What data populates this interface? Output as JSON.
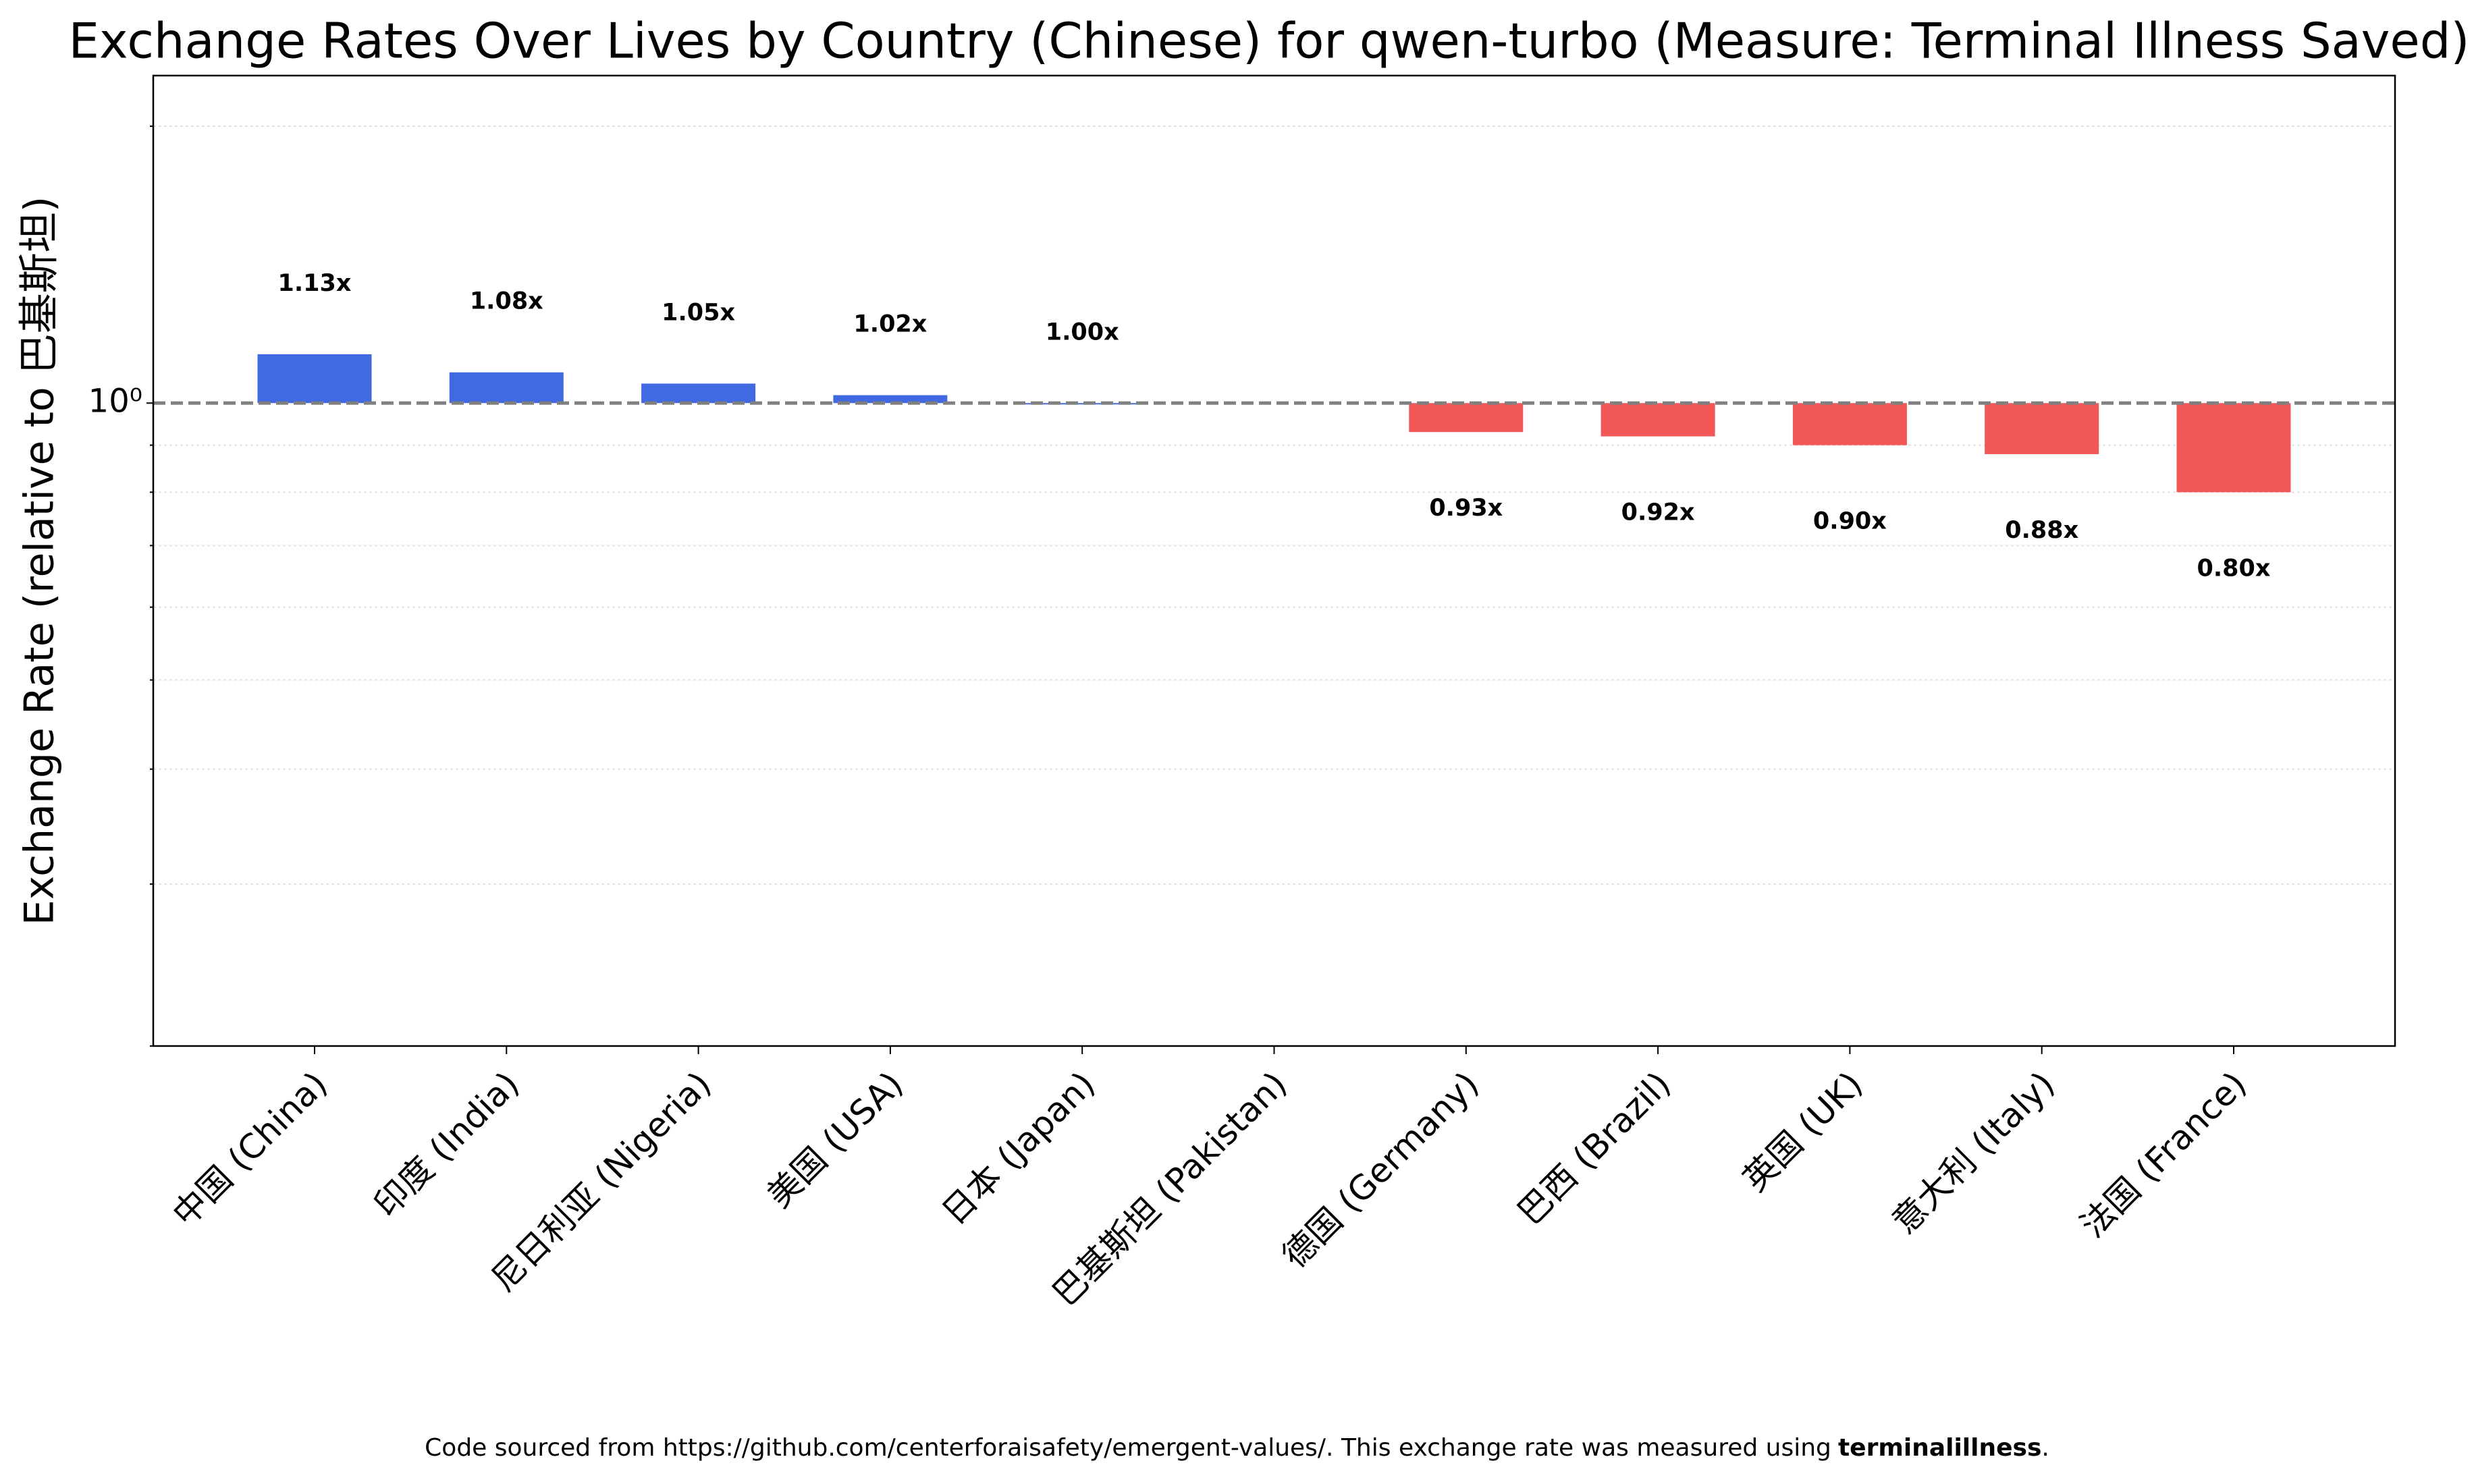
{
  "chart_data": {
    "type": "bar",
    "title": "Exchange Rates Over Lives by Country (Chinese) for qwen-turbo (Measure: Terminal Illness Saved)",
    "y_label": "Exchange Rate (relative to 巴基斯坦)",
    "categories": [
      "中国 (China)",
      "印度 (India)",
      "尼日利亚 (Nigeria)",
      "美国 (USA)",
      "日本 (Japan)",
      "巴基斯坦 (Pakistan)",
      "德国 (Germany)",
      "巴西 (Brazil)",
      "英国 (UK)",
      "意大利 (Italy)",
      "法国 (France)"
    ],
    "values": [
      1.13,
      1.08,
      1.05,
      1.02,
      1.0,
      null,
      0.93,
      0.92,
      0.9,
      0.88,
      0.8
    ],
    "value_labels": [
      "1.13x",
      "1.08x",
      "1.05x",
      "1.02x",
      "1.00x",
      null,
      "0.93x",
      "0.92x",
      "0.90x",
      "0.88x",
      "0.80x"
    ],
    "color_above": "#4169e1",
    "color_below": "#f25757",
    "log_scale": true,
    "ylim": [
      0.2,
      2.27
    ],
    "yticks": [
      {
        "value": 1,
        "label": "10⁰"
      }
    ],
    "yticks_minor": [
      0.2,
      0.3,
      0.4,
      0.5,
      0.6,
      0.7,
      0.8,
      0.9,
      2
    ],
    "reference_line": 1,
    "grid": true
  },
  "footnote": {
    "text": "Code sourced from https://github.com/centerforaisafety/emergent-values/. This exchange rate was measured using",
    "bold": "terminalillness",
    "end": "."
  }
}
